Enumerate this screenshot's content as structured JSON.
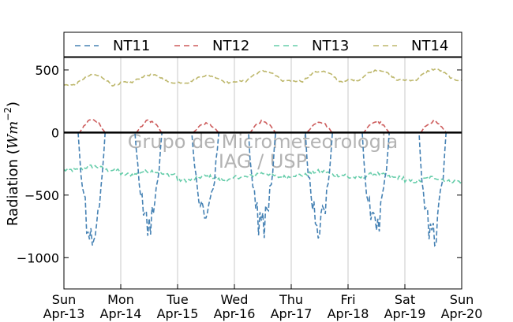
{
  "chart_data": {
    "type": "line",
    "title": "",
    "xlabel": "",
    "ylabel_prefix": "Radiation (",
    "ylabel_unit": "Wm",
    "ylabel_exponent": "−2",
    "ylabel_suffix": ")",
    "ylim": [
      -1250,
      600
    ],
    "yticks": [
      500,
      0,
      -500,
      -1000
    ],
    "ytick_labels": [
      "500",
      "0",
      "−500",
      "−1000"
    ],
    "xlim": [
      "2014-04-13",
      "2014-04-20"
    ],
    "xticks": [
      {
        "line1": "Sun",
        "line2": "Apr-13"
      },
      {
        "line1": "Mon",
        "line2": "Apr-14"
      },
      {
        "line1": "Tue",
        "line2": "Apr-15"
      },
      {
        "line1": "Wed",
        "line2": "Apr-16"
      },
      {
        "line1": "Thu",
        "line2": "Apr-17"
      },
      {
        "line1": "Fri",
        "line2": "Apr-18"
      },
      {
        "line1": "Sat",
        "line2": "Apr-19"
      },
      {
        "line1": "Sun",
        "line2": "Apr-20"
      }
    ],
    "grid": "vertical",
    "legend_position": "top",
    "watermark": [
      "Grupo de Micrometeorologia",
      "IAG / USP"
    ],
    "series": [
      {
        "name": "NT11",
        "color": "#4682b4",
        "daily_min": [
          -930,
          -880,
          -780,
          -900,
          -890,
          -930,
          -990
        ],
        "night_value": 0
      },
      {
        "name": "NT12",
        "color": "#cd5c5c",
        "daily_max": [
          120,
          105,
          80,
          100,
          95,
          100,
          100
        ],
        "night_value": 0
      },
      {
        "name": "NT13",
        "color": "#66cdaa",
        "daily_mean": [
          -300,
          -335,
          -380,
          -355,
          -340,
          -360,
          -390
        ],
        "day_bump": 30
      },
      {
        "name": "NT14",
        "color": "#bdb76b",
        "daily_base": [
          380,
          400,
          400,
          410,
          410,
          420,
          420
        ],
        "daily_max": [
          460,
          460,
          455,
          490,
          490,
          500,
          505
        ]
      }
    ]
  }
}
